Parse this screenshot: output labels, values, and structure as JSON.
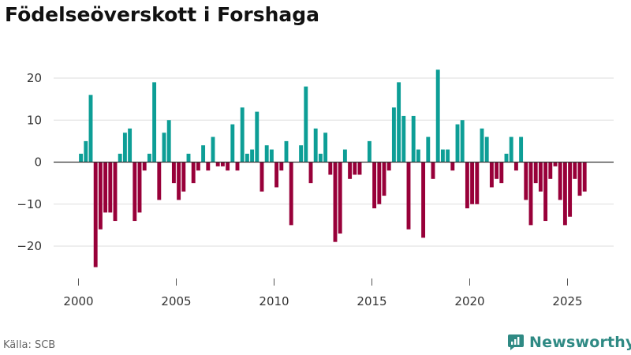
{
  "title": "Födelseöverskott i Forshaga",
  "source": "Källa: SCB",
  "brand": "Newsworthy",
  "colors": {
    "positive": "#0d9e96",
    "negative": "#980039",
    "brand": "#2f8a84"
  },
  "chart_data": {
    "type": "bar",
    "title": "Födelseöverskott i Forshaga",
    "xlabel": "",
    "ylabel": "",
    "ylim": [
      -25,
      22
    ],
    "xlim": [
      1999.2,
      2027.5
    ],
    "yticks": [
      -20,
      -10,
      0,
      10,
      20
    ],
    "xticks": [
      2000,
      2005,
      2010,
      2015,
      2020,
      2025
    ],
    "grid": true,
    "legend": "none",
    "x_start": 2000.125,
    "x_step": 0.25,
    "values": [
      2,
      5,
      16,
      -25,
      -16,
      -12,
      -12,
      -14,
      2,
      7,
      8,
      -14,
      -12,
      -2,
      2,
      19,
      -9,
      7,
      10,
      -5,
      -9,
      -7,
      2,
      -5,
      -2,
      4,
      -2,
      6,
      -1,
      -1,
      -2,
      9,
      -2,
      13,
      2,
      3,
      12,
      -7,
      4,
      3,
      -6,
      -2,
      5,
      -15,
      0,
      4,
      18,
      -5,
      8,
      2,
      7,
      -3,
      -19,
      -17,
      3,
      -4,
      -3,
      -3,
      0,
      5,
      -11,
      -10,
      -8,
      -2,
      13,
      19,
      11,
      -16,
      11,
      3,
      -18,
      6,
      -4,
      22,
      3,
      3,
      -2,
      9,
      10,
      -11,
      -10,
      -10,
      8,
      6,
      -6,
      -4,
      -5,
      2,
      6,
      -2,
      6,
      -9,
      -15,
      -5,
      -7,
      -14,
      -4,
      -1,
      -9,
      -15,
      -13,
      -4,
      -8,
      -7
    ]
  }
}
